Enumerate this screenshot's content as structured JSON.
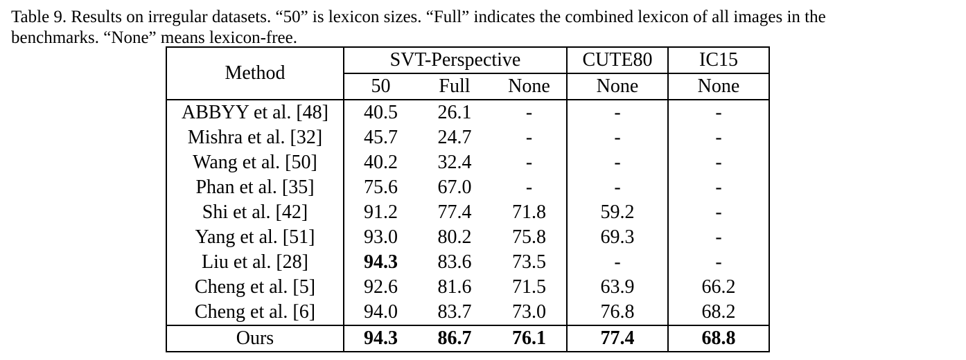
{
  "caption": {
    "line1": "Table 9. Results on irregular datasets.  “50” is lexicon sizes.  “Full” indicates the combined lexicon of all images in the",
    "line2": "benchmarks. “None” means lexicon-free."
  },
  "table": {
    "method_header": "Method",
    "groups": {
      "svt": "SVT-Perspective",
      "cute": "CUTE80",
      "ic15": "IC15"
    },
    "subheaders": {
      "svt_50": "50",
      "svt_full": "Full",
      "svt_none": "None",
      "cute_none": "None",
      "ic15_none": "None"
    },
    "rows": [
      {
        "method": "ABBYY et al. [48]",
        "svt_50": "40.5",
        "svt_full": "26.1",
        "svt_none": "-",
        "cute": "-",
        "ic15": "-"
      },
      {
        "method": "Mishra et al. [32]",
        "svt_50": "45.7",
        "svt_full": "24.7",
        "svt_none": "-",
        "cute": "-",
        "ic15": "-"
      },
      {
        "method": "Wang et al. [50]",
        "svt_50": "40.2",
        "svt_full": "32.4",
        "svt_none": "-",
        "cute": "-",
        "ic15": "-"
      },
      {
        "method": "Phan et al. [35]",
        "svt_50": "75.6",
        "svt_full": "67.0",
        "svt_none": "-",
        "cute": "-",
        "ic15": "-"
      },
      {
        "method": "Shi et al. [42]",
        "svt_50": "91.2",
        "svt_full": "77.4",
        "svt_none": "71.8",
        "cute": "59.2",
        "ic15": "-"
      },
      {
        "method": "Yang et al. [51]",
        "svt_50": "93.0",
        "svt_full": "80.2",
        "svt_none": "75.8",
        "cute": "69.3",
        "ic15": "-"
      },
      {
        "method": "Liu et al. [28]",
        "svt_50": "94.3",
        "svt_full": "83.6",
        "svt_none": "73.5",
        "cute": "-",
        "ic15": "-"
      },
      {
        "method": "Cheng et al. [5]",
        "svt_50": "92.6",
        "svt_full": "81.6",
        "svt_none": "71.5",
        "cute": "63.9",
        "ic15": "66.2"
      },
      {
        "method": "Cheng et al. [6]",
        "svt_50": "94.0",
        "svt_full": "83.7",
        "svt_none": "73.0",
        "cute": "76.8",
        "ic15": "68.2"
      }
    ],
    "ours": {
      "method": "Ours",
      "svt_50": "94.3",
      "svt_full": "86.7",
      "svt_none": "76.1",
      "cute": "77.4",
      "ic15": "68.8"
    }
  }
}
